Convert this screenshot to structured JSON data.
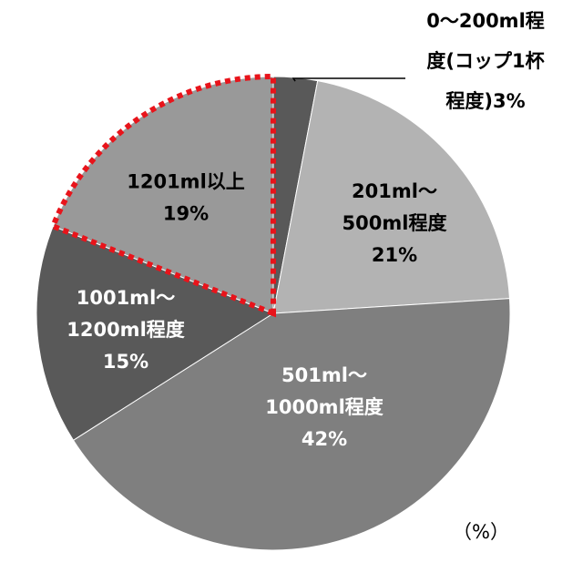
{
  "chart_data": {
    "type": "pie",
    "unit_label": "（%）",
    "start_angle_deg": 0,
    "direction": "clockwise",
    "slices": [
      {
        "label_lines": [
          "0～200ml程",
          "度(コップ1杯",
          "程度)3%"
        ],
        "category": "0～200ml程度(コップ1杯程度)",
        "value": 3,
        "color": "#595959",
        "label_color": "#000000",
        "callout": true
      },
      {
        "label_lines": [
          "201ml～",
          "500ml程度",
          "21%"
        ],
        "category": "201ml～500ml程度",
        "value": 21,
        "color": "#b3b3b3",
        "label_color": "#000000",
        "callout": false
      },
      {
        "label_lines": [
          "501ml～",
          "1000ml程度",
          "42%"
        ],
        "category": "501ml～1000ml程度",
        "value": 42,
        "color": "#7f7f7f",
        "label_color": "#ffffff",
        "callout": false
      },
      {
        "label_lines": [
          "1001ml～",
          "1200ml程度",
          "15%"
        ],
        "category": "1001ml～1200ml程度",
        "value": 15,
        "color": "#595959",
        "label_color": "#ffffff",
        "callout": false
      },
      {
        "label_lines": [
          "1201ml以上",
          "19%"
        ],
        "category": "1201ml以上",
        "value": 19,
        "color": "#999999",
        "label_color": "#000000",
        "callout": false,
        "highlight": true
      }
    ],
    "highlight_color": "#e8141b"
  }
}
